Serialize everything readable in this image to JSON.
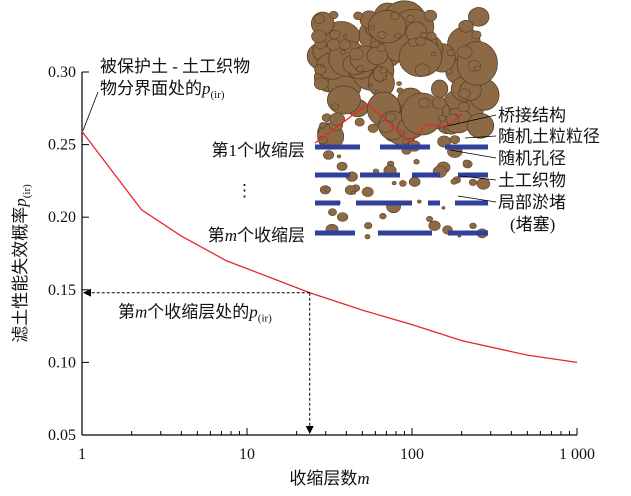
{
  "chart_data": {
    "type": "line",
    "xlabel": [
      {
        "text": "收缩层数"
      },
      {
        "text": "m",
        "italic": true
      }
    ],
    "ylabel": [
      {
        "text": "滤土性能失效概率"
      },
      {
        "text": "p",
        "italic": true
      },
      {
        "text": "(ir)",
        "sub": true
      }
    ],
    "x": [
      1,
      2.3,
      4,
      7.5,
      24,
      50,
      100,
      200,
      500,
      1000
    ],
    "series": [
      {
        "color": "#e8262a",
        "values": [
          0.259,
          0.205,
          0.187,
          0.17,
          0.148,
          0.136,
          0.126,
          0.115,
          0.105,
          0.1
        ]
      }
    ],
    "xscale": "log",
    "xlim": [
      1,
      1000
    ],
    "xticks": [
      1,
      10,
      100,
      {
        "value": 1000,
        "label": "1 000"
      }
    ],
    "ylim": [
      0.05,
      0.3
    ],
    "yticks": [
      0.05,
      {
        "value": 0.1,
        "label": "0.10"
      },
      0.15,
      {
        "value": 0.2,
        "label": "0.20"
      },
      0.25,
      {
        "value": 0.3,
        "label": "0.30"
      }
    ],
    "annotations": [
      {
        "lines": [
          [
            {
              "text": "被保护土 - 土工织物"
            }
          ],
          [
            {
              "text": "物分界面处的"
            },
            {
              "text": "p",
              "italic": true
            },
            {
              "text": "(ir)",
              "sub": true
            }
          ]
        ]
      },
      {
        "x": 24,
        "y": 0.148,
        "lines": [
          [
            {
              "text": "第"
            },
            {
              "text": "m",
              "italic": true
            },
            {
              "text": "个收缩层处的"
            },
            {
              "text": "p",
              "italic": true
            },
            {
              "text": "(ir)",
              "sub": true
            }
          ]
        ]
      }
    ],
    "inset": {
      "layer_labels": [
        [
          {
            "text": "第1个收缩层"
          }
        ],
        [
          {
            "text": "⋮"
          }
        ],
        [
          {
            "text": "第"
          },
          {
            "text": "m",
            "italic": true
          },
          {
            "text": "个收缩层"
          }
        ]
      ],
      "legend": [
        "桥接结构",
        "随机土粒粒径",
        "随机孔径",
        "土工织物",
        "局部淤堵",
        "(堵塞)"
      ]
    }
  }
}
